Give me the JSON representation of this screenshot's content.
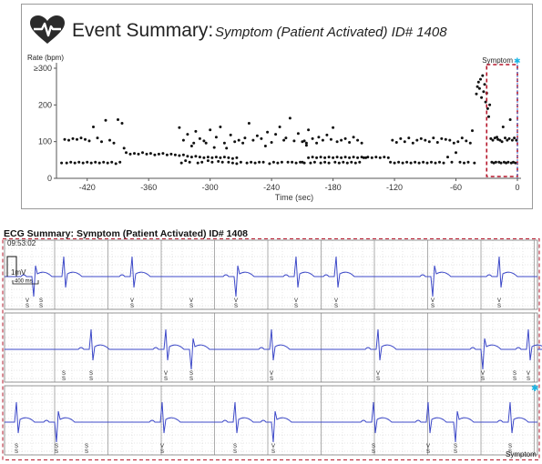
{
  "event_summary": {
    "title": "Event Summary:",
    "subtitle": "Symptom (Patient Activated) ID# 1408"
  },
  "chart_data": {
    "type": "scatter",
    "title": "Event Summary:",
    "subtitle": "Symptom (Patient Activated) ID# 1408",
    "ylabel": "Rate (bpm)",
    "xlabel": "Time (sec)",
    "xlim": [
      -450,
      0
    ],
    "ylim": [
      0,
      300
    ],
    "x_ticks": [
      -420,
      -360,
      -300,
      -240,
      -180,
      -120,
      -60,
      0
    ],
    "y_ticks": [
      0,
      100,
      200,
      300
    ],
    "y_tick_labels": [
      "0",
      "100",
      "200",
      "≥300"
    ],
    "grid": false,
    "annotation": {
      "label": "Symptom",
      "x_start": -30,
      "x_end": 0,
      "color": "#b5172b"
    },
    "series": [
      {
        "points": [
          [
            -445,
            42
          ],
          [
            -442,
            106
          ],
          [
            -440,
            42
          ],
          [
            -438,
            104
          ],
          [
            -436,
            44
          ],
          [
            -434,
            108
          ],
          [
            -432,
            42
          ],
          [
            -430,
            106
          ],
          [
            -428,
            44
          ],
          [
            -426,
            110
          ],
          [
            -424,
            42
          ],
          [
            -422,
            106
          ],
          [
            -420,
            44
          ],
          [
            -418,
            102
          ],
          [
            -416,
            42
          ],
          [
            -414,
            140
          ],
          [
            -412,
            44
          ],
          [
            -410,
            110
          ],
          [
            -408,
            42
          ],
          [
            -406,
            100
          ],
          [
            -404,
            44
          ],
          [
            -402,
            158
          ],
          [
            -400,
            42
          ],
          [
            -398,
            104
          ],
          [
            -396,
            44
          ],
          [
            -394,
            96
          ],
          [
            -392,
            40
          ],
          [
            -390,
            160
          ],
          [
            -388,
            44
          ],
          [
            -386,
            150
          ],
          [
            -384,
            82
          ],
          [
            -382,
            70
          ],
          [
            -378,
            66
          ],
          [
            -374,
            68
          ],
          [
            -370,
            66
          ],
          [
            -366,
            70
          ],
          [
            -362,
            66
          ],
          [
            -358,
            68
          ],
          [
            -354,
            64
          ],
          [
            -350,
            66
          ],
          [
            -346,
            68
          ],
          [
            -342,
            64
          ],
          [
            -338,
            66
          ],
          [
            -334,
            64
          ],
          [
            -330,
            62
          ],
          [
            -326,
            64
          ],
          [
            -322,
            60
          ],
          [
            -318,
            58
          ],
          [
            -314,
            60
          ],
          [
            -310,
            58
          ],
          [
            -306,
            56
          ],
          [
            -302,
            58
          ],
          [
            -298,
            56
          ],
          [
            -294,
            58
          ],
          [
            -290,
            56
          ],
          [
            -286,
            58
          ],
          [
            -282,
            56
          ],
          [
            -278,
            54
          ],
          [
            -274,
            56
          ],
          [
            -330,
            138
          ],
          [
            -328,
            42
          ],
          [
            -326,
            104
          ],
          [
            -324,
            48
          ],
          [
            -322,
            120
          ],
          [
            -320,
            44
          ],
          [
            -318,
            88
          ],
          [
            -316,
            96
          ],
          [
            -314,
            128
          ],
          [
            -312,
            42
          ],
          [
            -310,
            108
          ],
          [
            -308,
            44
          ],
          [
            -306,
            102
          ],
          [
            -304,
            96
          ],
          [
            -302,
            48
          ],
          [
            -300,
            132
          ],
          [
            -298,
            44
          ],
          [
            -296,
            84
          ],
          [
            -294,
            112
          ],
          [
            -292,
            46
          ],
          [
            -290,
            140
          ],
          [
            -288,
            44
          ],
          [
            -286,
            96
          ],
          [
            -284,
            82
          ],
          [
            -282,
            44
          ],
          [
            -280,
            118
          ],
          [
            -278,
            42
          ],
          [
            -276,
            100
          ],
          [
            -274,
            40
          ],
          [
            -272,
            104
          ],
          [
            -270,
            44
          ],
          [
            -268,
            96
          ],
          [
            -266,
            110
          ],
          [
            -264,
            42
          ],
          [
            -262,
            150
          ],
          [
            -260,
            44
          ],
          [
            -258,
            104
          ],
          [
            -256,
            42
          ],
          [
            -254,
            116
          ],
          [
            -252,
            44
          ],
          [
            -250,
            108
          ],
          [
            -248,
            44
          ],
          [
            -246,
            88
          ],
          [
            -244,
            126
          ],
          [
            -242,
            40
          ],
          [
            -240,
            98
          ],
          [
            -238,
            44
          ],
          [
            -236,
            120
          ],
          [
            -234,
            42
          ],
          [
            -232,
            140
          ],
          [
            -230,
            44
          ],
          [
            -228,
            104
          ],
          [
            -226,
            110
          ],
          [
            -224,
            44
          ],
          [
            -222,
            164
          ],
          [
            -220,
            44
          ],
          [
            -218,
            102
          ],
          [
            -216,
            42
          ],
          [
            -214,
            122
          ],
          [
            -212,
            44
          ],
          [
            -210,
            100
          ],
          [
            -208,
            42
          ],
          [
            -206,
            96
          ],
          [
            -204,
            56
          ],
          [
            -200,
            58
          ],
          [
            -196,
            56
          ],
          [
            -192,
            58
          ],
          [
            -188,
            56
          ],
          [
            -184,
            58
          ],
          [
            -180,
            56
          ],
          [
            -176,
            58
          ],
          [
            -172,
            56
          ],
          [
            -168,
            58
          ],
          [
            -164,
            56
          ],
          [
            -160,
            58
          ],
          [
            -156,
            56
          ],
          [
            -152,
            58
          ],
          [
            -148,
            56
          ],
          [
            -210,
            44
          ],
          [
            -208,
            102
          ],
          [
            -206,
            90
          ],
          [
            -204,
            132
          ],
          [
            -202,
            42
          ],
          [
            -200,
            108
          ],
          [
            -198,
            44
          ],
          [
            -196,
            96
          ],
          [
            -194,
            112
          ],
          [
            -192,
            42
          ],
          [
            -190,
            104
          ],
          [
            -188,
            44
          ],
          [
            -186,
            118
          ],
          [
            -184,
            42
          ],
          [
            -182,
            106
          ],
          [
            -180,
            138
          ],
          [
            -178,
            44
          ],
          [
            -176,
            100
          ],
          [
            -174,
            42
          ],
          [
            -172,
            104
          ],
          [
            -170,
            44
          ],
          [
            -168,
            108
          ],
          [
            -166,
            42
          ],
          [
            -164,
            98
          ],
          [
            -162,
            44
          ],
          [
            -160,
            112
          ],
          [
            -158,
            42
          ],
          [
            -156,
            104
          ],
          [
            -154,
            44
          ],
          [
            -152,
            96
          ],
          [
            -150,
            56
          ],
          [
            -146,
            58
          ],
          [
            -142,
            56
          ],
          [
            -138,
            58
          ],
          [
            -134,
            56
          ],
          [
            -130,
            58
          ],
          [
            -126,
            56
          ],
          [
            -124,
            44
          ],
          [
            -122,
            104
          ],
          [
            -120,
            42
          ],
          [
            -118,
            98
          ],
          [
            -116,
            44
          ],
          [
            -114,
            108
          ],
          [
            -112,
            42
          ],
          [
            -110,
            100
          ],
          [
            -108,
            44
          ],
          [
            -106,
            110
          ],
          [
            -104,
            42
          ],
          [
            -102,
            96
          ],
          [
            -100,
            44
          ],
          [
            -98,
            104
          ],
          [
            -96,
            42
          ],
          [
            -94,
            108
          ],
          [
            -92,
            44
          ],
          [
            -90,
            104
          ],
          [
            -88,
            42
          ],
          [
            -86,
            100
          ],
          [
            -84,
            44
          ],
          [
            -82,
            110
          ],
          [
            -80,
            42
          ],
          [
            -78,
            98
          ],
          [
            -76,
            44
          ],
          [
            -74,
            108
          ],
          [
            -72,
            42
          ],
          [
            -70,
            106
          ],
          [
            -68,
            58
          ],
          [
            -66,
            104
          ],
          [
            -64,
            44
          ],
          [
            -62,
            96
          ],
          [
            -60,
            70
          ],
          [
            -58,
            100
          ],
          [
            -56,
            44
          ],
          [
            -54,
            110
          ],
          [
            -52,
            42
          ],
          [
            -50,
            102
          ],
          [
            -48,
            44
          ],
          [
            -46,
            96
          ],
          [
            -44,
            130
          ],
          [
            -42,
            42
          ],
          [
            -40,
            230
          ],
          [
            -39,
            250
          ],
          [
            -38,
            262
          ],
          [
            -37,
            245
          ],
          [
            -36,
            270
          ],
          [
            -35,
            220
          ],
          [
            -34,
            280
          ],
          [
            -33,
            236
          ],
          [
            -32,
            256
          ],
          [
            -31,
            208
          ],
          [
            -30,
            232
          ],
          [
            -29,
            190
          ],
          [
            -28,
            168
          ],
          [
            -27,
            200
          ],
          [
            -26,
            108
          ],
          [
            -25,
            44
          ],
          [
            -24,
            104
          ],
          [
            -23,
            42
          ],
          [
            -22,
            110
          ],
          [
            -21,
            44
          ],
          [
            -20,
            112
          ],
          [
            -19,
            106
          ],
          [
            -18,
            44
          ],
          [
            -17,
            104
          ],
          [
            -16,
            42
          ],
          [
            -15,
            100
          ],
          [
            -14,
            140
          ],
          [
            -13,
            44
          ],
          [
            -12,
            110
          ],
          [
            -11,
            42
          ],
          [
            -10,
            104
          ],
          [
            -9,
            44
          ],
          [
            -8,
            108
          ],
          [
            -7,
            160
          ],
          [
            -6,
            42
          ],
          [
            -5,
            104
          ],
          [
            -4,
            44
          ],
          [
            -3,
            110
          ],
          [
            -2,
            42
          ],
          [
            -1,
            104
          ]
        ]
      }
    ]
  },
  "ecg": {
    "title": "ECG Summary: Symptom (Patient Activated) ID# 1408",
    "timestamp": "09:53:02",
    "calibration_label": "1mV",
    "scale_label": "400 ms",
    "beat_label_v": "V",
    "beat_label_s": "S",
    "symptom_label": "Symptom",
    "strips": [
      {
        "qrs": [
          37,
          70,
          145,
          259,
          325,
          369,
          475,
          548
        ],
        "labels": [
          [
            30,
            "V"
          ],
          [
            45,
            "S"
          ],
          [
            145,
            "V"
          ],
          [
            210,
            "V"
          ],
          [
            259,
            "V"
          ],
          [
            325,
            "V"
          ],
          [
            369,
            "V"
          ],
          [
            475,
            "V"
          ],
          [
            548,
            "V"
          ]
        ]
      },
      {
        "qrs": [
          100,
          182,
          210,
          298,
          415,
          530,
          580
        ],
        "labels": [
          [
            70,
            "S"
          ],
          [
            100,
            "S"
          ],
          [
            182,
            "V"
          ],
          [
            210,
            "S"
          ],
          [
            298,
            "V"
          ],
          [
            415,
            "V"
          ],
          [
            530,
            "V"
          ],
          [
            565,
            "S"
          ],
          [
            580,
            "V"
          ]
        ]
      },
      {
        "qrs": [
          18,
          62,
          178,
          258,
          300,
          410,
          470,
          500,
          560
        ],
        "labels": [
          [
            18,
            "S"
          ],
          [
            62,
            "S"
          ],
          [
            95,
            "S"
          ],
          [
            178,
            "V"
          ],
          [
            258,
            "S"
          ],
          [
            300,
            "V"
          ],
          [
            410,
            "S"
          ],
          [
            470,
            "V"
          ],
          [
            500,
            "S"
          ],
          [
            560,
            "S"
          ]
        ]
      }
    ]
  }
}
